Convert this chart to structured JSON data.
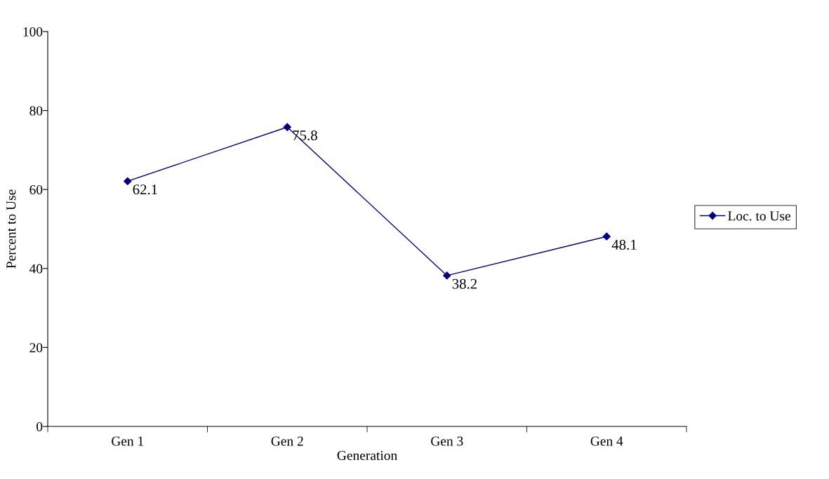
{
  "chart_data": {
    "type": "line",
    "xlabel": "Generation",
    "ylabel": "Percent to Use",
    "categories": [
      "Gen 1",
      "Gen 2",
      "Gen 3",
      "Gen 4"
    ],
    "series": [
      {
        "name": "Loc. to Use",
        "color": "#000080",
        "values": [
          62.1,
          75.8,
          38.2,
          48.1
        ]
      }
    ],
    "ylim": [
      0,
      100
    ],
    "yticks": [
      0,
      20,
      40,
      60,
      80,
      100
    ],
    "data_labels": true,
    "marker": "diamond",
    "line_style": "solid",
    "legend": "right",
    "grid": false
  }
}
